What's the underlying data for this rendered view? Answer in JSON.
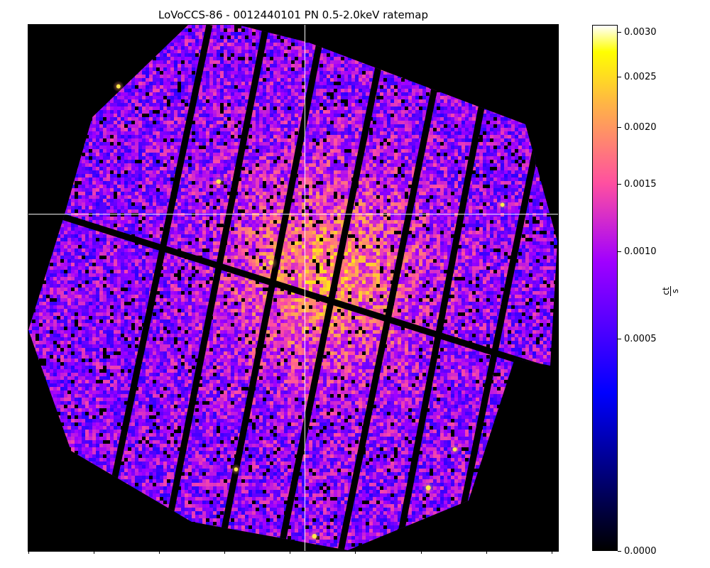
{
  "chart_data": {
    "type": "heatmap",
    "title": "LoVoCCS-86 - 0012440101 PN 0.5-2.0keV ratemap",
    "xlabel": "",
    "ylabel": "",
    "colormap": "gnuplot2",
    "colorbar": {
      "label_numerator": "ct",
      "label_denominator": "s",
      "scale": "sqrt",
      "range": [
        0.0,
        0.00308
      ],
      "ticks": [
        {
          "value": 0.003,
          "label": "0.0030"
        },
        {
          "value": 0.0025,
          "label": "0.0025"
        },
        {
          "value": 0.002,
          "label": "0.0020"
        },
        {
          "value": 0.0015,
          "label": "0.0015"
        },
        {
          "value": 0.001,
          "label": "0.0010"
        },
        {
          "value": 0.0005,
          "label": "0.0005"
        },
        {
          "value": 0.0,
          "label": "0.0000"
        }
      ]
    },
    "crosshair": {
      "x_frac": 0.522,
      "y_frac": 0.36
    },
    "point_sources": [
      {
        "x_frac": 0.359,
        "y_frac": 0.298,
        "brightness": 0.8
      },
      {
        "x_frac": 0.458,
        "y_frac": 0.452,
        "brightness": 0.9
      },
      {
        "x_frac": 0.755,
        "y_frac": 0.88,
        "brightness": 1.0
      },
      {
        "x_frac": 0.54,
        "y_frac": 0.972,
        "brightness": 0.85
      },
      {
        "x_frac": 0.895,
        "y_frac": 0.342,
        "brightness": 0.6
      },
      {
        "x_frac": 0.17,
        "y_frac": 0.117,
        "brightness": 0.6
      },
      {
        "x_frac": 0.805,
        "y_frac": 0.807,
        "brightness": 0.6
      },
      {
        "x_frac": 0.392,
        "y_frac": 0.845,
        "brightness": 0.55
      }
    ]
  },
  "colors": {
    "background": "#000000",
    "crosshair": "#ffffff"
  }
}
